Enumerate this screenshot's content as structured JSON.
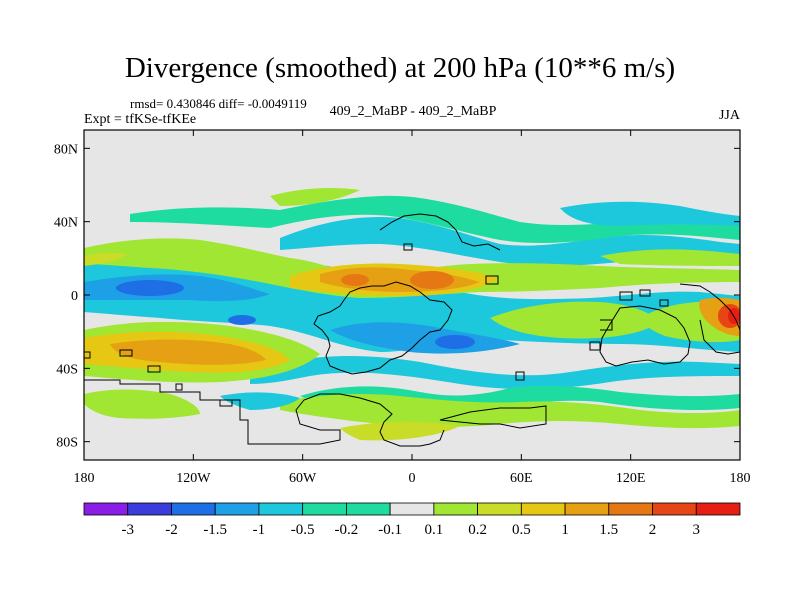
{
  "title": "Divergence (smoothed) at 200 hPa (10**6 m/s)",
  "stats": "rmsd= 0.430846 diff= -0.0049119",
  "experiment": "Expt = tfKSe-tfKEe",
  "comparison": "409_2_MaBP - 409_2_MaBP",
  "season": "JJA",
  "map": {
    "lat_labels": [
      "80N",
      "40N",
      "0",
      "40S",
      "80S"
    ],
    "lat_values": [
      80,
      40,
      0,
      -40,
      -80
    ],
    "lon_labels": [
      "180",
      "120W",
      "60W",
      "0",
      "60E",
      "120E",
      "180"
    ],
    "lon_values": [
      -180,
      -120,
      -60,
      0,
      60,
      120,
      180
    ],
    "lat_range": [
      -90,
      90
    ],
    "lon_range": [
      -180,
      180
    ]
  },
  "colorbar": {
    "labels": [
      "-3",
      "-2",
      "-1.5",
      "-1",
      "-0.5",
      "-0.2",
      "-0.1",
      "0.1",
      "0.2",
      "0.5",
      "1",
      "1.5",
      "2",
      "3"
    ],
    "colors": [
      "#8a1ee6",
      "#3c3cdc",
      "#1e6ee6",
      "#1ea0e6",
      "#1ec8dc",
      "#1edca0",
      "#e6e6e6",
      "#a0e632",
      "#c8dc28",
      "#e6c814",
      "#e6a014",
      "#e67814",
      "#e64614",
      "#e61e14"
    ]
  },
  "colors": {
    "neutral": "#e6e6e6",
    "coast": "#000000"
  }
}
